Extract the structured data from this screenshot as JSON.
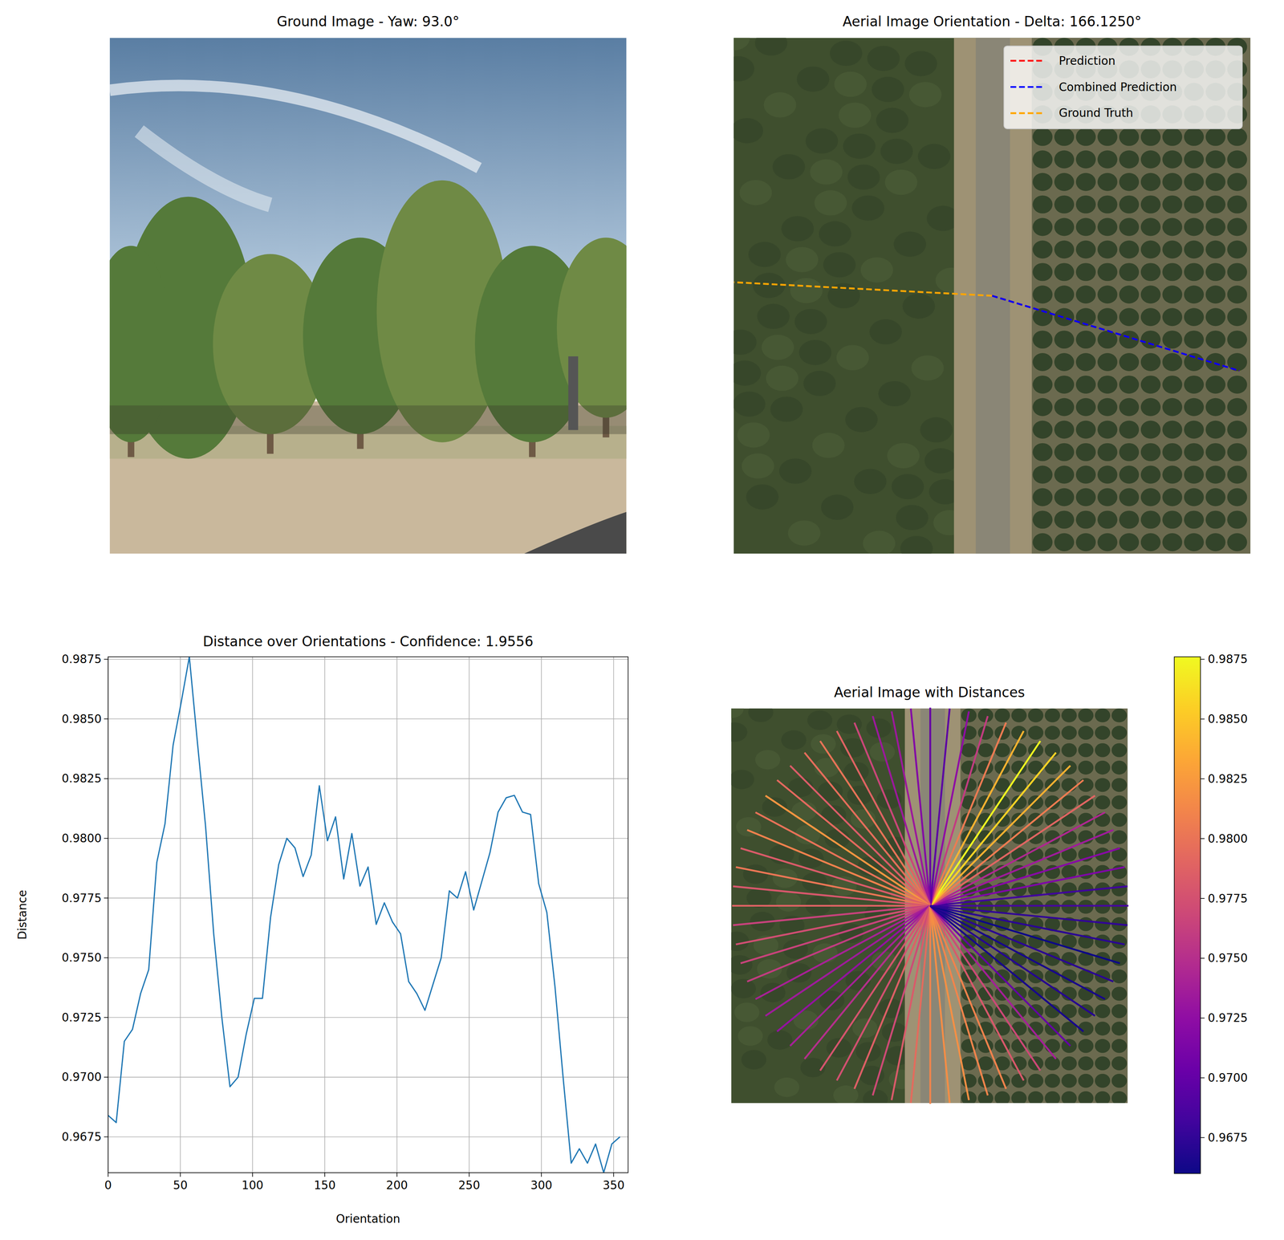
{
  "chart_data": [
    {
      "type": "image",
      "title": "Ground Image - Yaw: 93.0°"
    },
    {
      "type": "orientation",
      "title": "Aerial Image Orientation - Delta: 166.1250°",
      "legend": "upper right",
      "series": [
        {
          "name": "Prediction",
          "color": "#ff0000",
          "angle": 106.875,
          "line_style": "dashed"
        },
        {
          "name": "Combined Prediction",
          "color": "#0000ff",
          "angle": 106.875,
          "line_style": "dashed"
        },
        {
          "name": "Ground Truth",
          "color": "#ffa500",
          "angle": 273,
          "line_style": "dashed"
        }
      ]
    },
    {
      "type": "line",
      "title": "Distance over Orientations - Confidence: 1.9556",
      "x_label": "Orientation",
      "y_label": "Distance",
      "color": "#1f77b4",
      "grid": true,
      "x": [
        0,
        5.625,
        11.25,
        16.875,
        22.5,
        28.125,
        33.75,
        39.375,
        45,
        50.625,
        56.25,
        61.875,
        67.5,
        73.125,
        78.75,
        84.375,
        90,
        95.625,
        101.25,
        106.875,
        112.5,
        118.125,
        123.75,
        129.375,
        135,
        140.625,
        146.25,
        151.875,
        157.5,
        163.125,
        168.75,
        174.375,
        180,
        185.625,
        191.25,
        196.875,
        202.5,
        208.125,
        213.75,
        219.375,
        225,
        230.625,
        236.25,
        241.875,
        247.5,
        253.125,
        258.75,
        264.375,
        270,
        275.625,
        281.25,
        286.875,
        292.5,
        298.125,
        303.75,
        309.375,
        315,
        320.625,
        326.25,
        331.875,
        337.5,
        343.125,
        348.75,
        354.375
      ],
      "values": [
        0.9684,
        0.9681,
        0.9715,
        0.972,
        0.9735,
        0.9745,
        0.979,
        0.9806,
        0.9839,
        0.9857,
        0.9876,
        0.984,
        0.9805,
        0.976,
        0.9725,
        0.9696,
        0.97,
        0.9718,
        0.9733,
        0.9733,
        0.9767,
        0.9789,
        0.98,
        0.9796,
        0.9784,
        0.9793,
        0.9822,
        0.9799,
        0.9809,
        0.9783,
        0.9802,
        0.978,
        0.9788,
        0.9764,
        0.9773,
        0.9765,
        0.976,
        0.974,
        0.9735,
        0.9728,
        0.9739,
        0.975,
        0.9778,
        0.9775,
        0.9786,
        0.977,
        0.9782,
        0.9794,
        0.9811,
        0.9817,
        0.9818,
        0.9811,
        0.981,
        0.9781,
        0.9769,
        0.9738,
        0.97,
        0.9664,
        0.967,
        0.9664,
        0.9672,
        0.966,
        0.9672,
        0.9675
      ],
      "xlim": [
        0,
        360
      ],
      "ylim": [
        0.966,
        0.9876
      ],
      "xticks": [
        0,
        50,
        100,
        150,
        200,
        250,
        300,
        350
      ],
      "yticks": [
        0.9675,
        {
          "value": 0.97,
          "label": "0.9700"
        },
        0.9725,
        {
          "value": 0.975,
          "label": "0.9750"
        },
        0.9775,
        {
          "value": 0.98,
          "label": "0.9800"
        },
        0.9825,
        {
          "value": 0.985,
          "label": "0.9850"
        },
        0.9875
      ]
    },
    {
      "type": "radial",
      "title": "Aerial Image with Distances",
      "x": [
        0,
        5.625,
        11.25,
        16.875,
        22.5,
        28.125,
        33.75,
        39.375,
        45,
        50.625,
        56.25,
        61.875,
        67.5,
        73.125,
        78.75,
        84.375,
        90,
        95.625,
        101.25,
        106.875,
        112.5,
        118.125,
        123.75,
        129.375,
        135,
        140.625,
        146.25,
        151.875,
        157.5,
        163.125,
        168.75,
        174.375,
        180,
        185.625,
        191.25,
        196.875,
        202.5,
        208.125,
        213.75,
        219.375,
        225,
        230.625,
        236.25,
        241.875,
        247.5,
        253.125,
        258.75,
        264.375,
        270,
        275.625,
        281.25,
        286.875,
        292.5,
        298.125,
        303.75,
        309.375,
        315,
        320.625,
        326.25,
        331.875,
        337.5,
        343.125,
        348.75,
        354.375
      ],
      "values": [
        0.9684,
        0.9681,
        0.9715,
        0.972,
        0.9735,
        0.9745,
        0.979,
        0.9806,
        0.9839,
        0.9857,
        0.9876,
        0.984,
        0.9805,
        0.976,
        0.9725,
        0.9696,
        0.97,
        0.9718,
        0.9733,
        0.9733,
        0.9767,
        0.9789,
        0.98,
        0.9796,
        0.9784,
        0.9793,
        0.9822,
        0.9799,
        0.9809,
        0.9783,
        0.9802,
        0.978,
        0.9788,
        0.9764,
        0.9773,
        0.9765,
        0.976,
        0.974,
        0.9735,
        0.9728,
        0.9739,
        0.975,
        0.9778,
        0.9775,
        0.9786,
        0.977,
        0.9782,
        0.9794,
        0.9811,
        0.9817,
        0.9818,
        0.9811,
        0.981,
        0.9781,
        0.9769,
        0.9738,
        0.97,
        0.9664,
        0.967,
        0.9664,
        0.9672,
        0.966,
        0.9672,
        0.9675
      ],
      "colorbar_range": [
        0.966,
        0.9876
      ],
      "colorbar_ticks": [
        0.9675,
        {
          "value": 0.97,
          "label": "0.9700"
        },
        0.9725,
        {
          "value": 0.975,
          "label": "0.9750"
        },
        0.9775,
        {
          "value": 0.98,
          "label": "0.9800"
        },
        0.9825,
        {
          "value": 0.985,
          "label": "0.9850"
        },
        0.9875
      ]
    }
  ]
}
